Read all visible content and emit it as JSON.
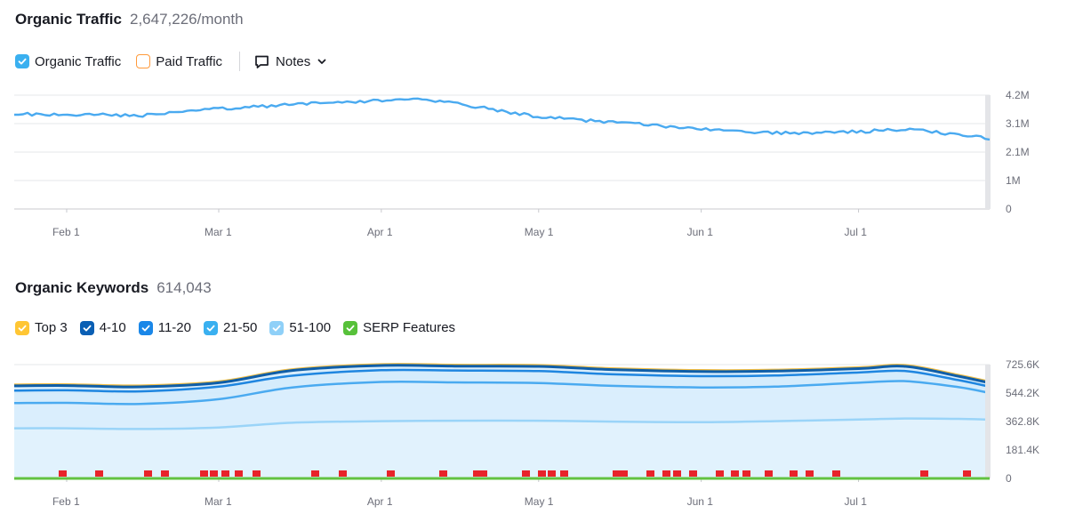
{
  "traffic": {
    "title": "Organic Traffic",
    "summary": "2,647,226/month",
    "legend": [
      {
        "label": "Organic Traffic",
        "checked": true,
        "color": "#3ab0f0"
      },
      {
        "label": "Paid Traffic",
        "checked": false,
        "color": "#ff9a3b"
      }
    ],
    "notes_label": "Notes"
  },
  "keywords": {
    "title": "Organic Keywords",
    "summary": "614,043",
    "legend": [
      {
        "label": "Top 3",
        "checked": true,
        "color": "#ffc634"
      },
      {
        "label": "4-10",
        "checked": true,
        "color": "#0a5fb4"
      },
      {
        "label": "11-20",
        "checked": true,
        "color": "#1a87e8"
      },
      {
        "label": "21-50",
        "checked": true,
        "color": "#3ab0f0"
      },
      {
        "label": "51-100",
        "checked": true,
        "color": "#8fd0f8"
      },
      {
        "label": "SERP Features",
        "checked": true,
        "color": "#57c13a"
      }
    ]
  },
  "chart_data": [
    {
      "type": "line",
      "title": "Organic Traffic",
      "x_ticks": [
        "Feb 1",
        "Mar 1",
        "Apr 1",
        "May 1",
        "Jun 1",
        "Jul 1"
      ],
      "y_ticks": [
        "4.2M",
        "3.1M",
        "2.1M",
        "1M",
        "0"
      ],
      "ylim": [
        0,
        4200000
      ],
      "grid": true,
      "series": [
        {
          "name": "Organic Traffic",
          "color": "#4aaaf0",
          "x": [
            "Jan 22",
            "Feb 1",
            "Feb 15",
            "Mar 1",
            "Mar 15",
            "Apr 1",
            "Apr 8",
            "Apr 15",
            "May 1",
            "May 15",
            "Jun 1",
            "Jun 15",
            "Jul 1",
            "Jul 10",
            "Jul 20",
            "Jul 26"
          ],
          "values": [
            3500000,
            3500000,
            3450000,
            3700000,
            3850000,
            4000000,
            4100000,
            3900000,
            3400000,
            3200000,
            2950000,
            2800000,
            2850000,
            2950000,
            2750000,
            2600000
          ]
        }
      ]
    },
    {
      "type": "area",
      "title": "Organic Keywords",
      "x_ticks": [
        "Feb 1",
        "Mar 1",
        "Apr 1",
        "May 1",
        "Jun 1",
        "Jul 1"
      ],
      "y_ticks": [
        "725.6K",
        "544.2K",
        "362.8K",
        "181.4K",
        "0"
      ],
      "ylim": [
        0,
        725600
      ],
      "grid": true,
      "x": [
        "Jan 22",
        "Feb 1",
        "Feb 15",
        "Mar 1",
        "Mar 15",
        "Apr 1",
        "Apr 15",
        "May 1",
        "May 15",
        "Jun 1",
        "Jun 15",
        "Jul 1",
        "Jul 10",
        "Jul 20",
        "Jul 26"
      ],
      "series": [
        {
          "name": "Top 3",
          "color": "#f2be45",
          "values": [
            598000,
            600000,
            592000,
            618000,
            695000,
            728000,
            724000,
            722000,
            702000,
            690000,
            692000,
            708000,
            722000,
            660000,
            617000
          ]
        },
        {
          "name": "4-10",
          "color": "#0f5ea8",
          "values": [
            590000,
            592000,
            584000,
            610000,
            688000,
            720000,
            716000,
            714000,
            694000,
            682000,
            684000,
            700000,
            714000,
            652000,
            609000
          ]
        },
        {
          "name": "11-20",
          "color": "#1f86e0",
          "values": [
            560000,
            562000,
            555000,
            585000,
            655000,
            690000,
            688000,
            684000,
            664000,
            652000,
            656000,
            675000,
            685000,
            627000,
            585000
          ]
        },
        {
          "name": "21-50",
          "color": "#4aaaf0",
          "values": [
            480000,
            482000,
            475000,
            505000,
            580000,
            615000,
            612000,
            608000,
            590000,
            580000,
            585000,
            610000,
            620000,
            582000,
            545000
          ]
        },
        {
          "name": "51-100",
          "color": "#9ad4f8",
          "values": [
            320000,
            320000,
            315000,
            325000,
            355000,
            365000,
            368000,
            368000,
            362000,
            358000,
            365000,
            375000,
            382000,
            380000,
            375000
          ]
        },
        {
          "name": "SERP Features",
          "color": "#62c241",
          "values": [
            0,
            0,
            0,
            0,
            0,
            0,
            0,
            0,
            0,
            0,
            0,
            0,
            0,
            0,
            0
          ]
        }
      ]
    }
  ]
}
